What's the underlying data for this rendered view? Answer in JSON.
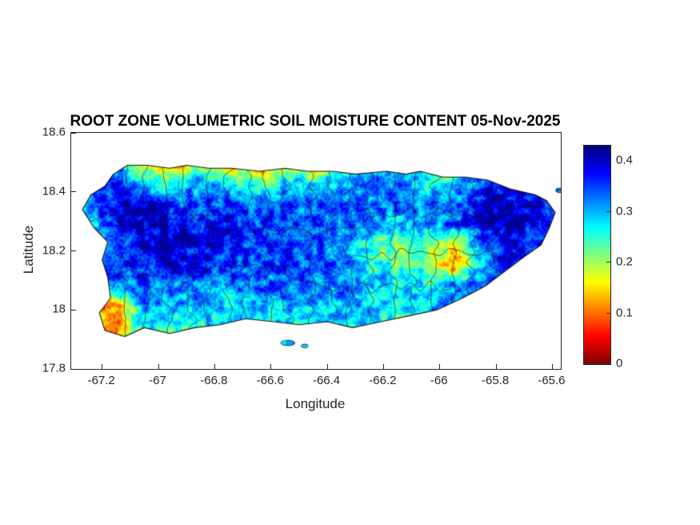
{
  "figure": {
    "background": "#ffffff",
    "axis_color": "#262626",
    "title_color": "#000000"
  },
  "chart_data": {
    "type": "heatmap",
    "title": "ROOT ZONE VOLUMETRIC SOIL MOISTURE CONTENT 05-Nov-2025",
    "xlabel": "Longitude",
    "ylabel": "Latitude",
    "region": "Puerto Rico",
    "xlim": [
      -67.31,
      -65.57
    ],
    "ylim": [
      17.8,
      18.6
    ],
    "grid_lines_visible": false,
    "xticks": {
      "values": [
        -67.2,
        -67,
        -66.8,
        -66.6,
        -66.4,
        -66.2,
        -66,
        -65.8,
        -65.6
      ],
      "labels": [
        "-67.2",
        "-67",
        "-66.8",
        "-66.6",
        "-66.4",
        "-66.2",
        "-66",
        "-65.8",
        "-65.6"
      ]
    },
    "yticks": {
      "values": [
        18.6,
        18.4,
        18.2,
        18,
        17.8
      ],
      "labels": [
        "18.6",
        "18.4",
        "18.2",
        "18",
        "17.8"
      ]
    },
    "colorbar": {
      "position": "right",
      "clim": [
        0,
        0.43
      ],
      "ticks": {
        "values": [
          0.4,
          0.3,
          0.2,
          0.1,
          0
        ],
        "labels": [
          "0.4",
          "0.3",
          "0.2",
          "0.1",
          "0"
        ]
      },
      "colormap": "jet-reversed (high values = dark blue, low values = dark red)",
      "colormap_stops_low_to_high": [
        "#8f0000",
        "#ff0000",
        "#ffff00",
        "#00ffff",
        "#0000ff",
        "#00008f"
      ]
    },
    "grid": {
      "orientation": "rows north-to-south, cols west-to-east; volumetric soil moisture m3/m3",
      "lat0": 18.5,
      "dlat": 0.07,
      "lon0": -67.25,
      "dlon": 0.1,
      "values": [
        [
          0.31,
          0.3,
          0.12,
          0.1,
          0.18,
          0.13,
          0.08,
          0.16,
          0.12,
          0.18,
          0.28,
          0.28,
          0.31,
          0.14,
          0.3,
          0.33,
          0.31,
          0.3
        ],
        [
          0.34,
          0.37,
          0.28,
          0.26,
          0.31,
          0.27,
          0.24,
          0.29,
          0.27,
          0.29,
          0.33,
          0.33,
          0.27,
          0.28,
          0.35,
          0.39,
          0.36,
          0.33
        ],
        [
          0.31,
          0.38,
          0.4,
          0.36,
          0.34,
          0.36,
          0.33,
          0.35,
          0.33,
          0.35,
          0.33,
          0.34,
          0.32,
          0.31,
          0.38,
          0.41,
          0.38,
          0.34
        ],
        [
          0.29,
          0.36,
          0.41,
          0.39,
          0.37,
          0.38,
          0.35,
          0.36,
          0.34,
          0.33,
          0.31,
          0.29,
          0.3,
          0.34,
          0.4,
          0.41,
          0.37,
          0.33
        ],
        [
          0.31,
          0.34,
          0.39,
          0.4,
          0.38,
          0.37,
          0.35,
          0.34,
          0.35,
          0.31,
          0.25,
          0.21,
          0.22,
          0.15,
          0.33,
          0.39,
          0.34,
          0.31
        ],
        [
          0.33,
          0.36,
          0.37,
          0.39,
          0.37,
          0.36,
          0.34,
          0.35,
          0.34,
          0.32,
          0.27,
          0.23,
          0.24,
          0.12,
          0.3,
          0.36,
          0.31,
          0.29
        ],
        [
          0.3,
          0.32,
          0.34,
          0.32,
          0.33,
          0.31,
          0.33,
          0.34,
          0.31,
          0.33,
          0.31,
          0.28,
          0.27,
          0.32,
          0.34,
          0.32,
          0.29,
          0.27
        ],
        [
          0.16,
          0.1,
          0.31,
          0.28,
          0.3,
          0.28,
          0.3,
          0.31,
          0.29,
          0.31,
          0.29,
          0.27,
          0.29,
          0.32,
          0.3,
          0.28,
          0.27,
          0.25
        ],
        [
          0.2,
          0.12,
          0.27,
          0.24,
          0.27,
          0.25,
          0.27,
          0.29,
          0.27,
          0.29,
          0.27,
          0.25,
          0.27,
          0.29,
          0.27,
          0.25,
          0.24,
          0.23
        ]
      ]
    },
    "coastline": [
      [
        -67.16,
        18.46
      ],
      [
        -67.11,
        18.49
      ],
      [
        -67.04,
        18.49
      ],
      [
        -66.96,
        18.48
      ],
      [
        -66.9,
        18.49
      ],
      [
        -66.82,
        18.48
      ],
      [
        -66.74,
        18.48
      ],
      [
        -66.64,
        18.47
      ],
      [
        -66.55,
        18.48
      ],
      [
        -66.47,
        18.47
      ],
      [
        -66.38,
        18.47
      ],
      [
        -66.3,
        18.46
      ],
      [
        -66.19,
        18.47
      ],
      [
        -66.12,
        18.46
      ],
      [
        -66.07,
        18.47
      ],
      [
        -65.99,
        18.45
      ],
      [
        -65.91,
        18.45
      ],
      [
        -65.83,
        18.44
      ],
      [
        -65.75,
        18.41
      ],
      [
        -65.66,
        18.39
      ],
      [
        -65.62,
        18.37
      ],
      [
        -65.59,
        18.33
      ],
      [
        -65.61,
        18.28
      ],
      [
        -65.64,
        18.22
      ],
      [
        -65.7,
        18.18
      ],
      [
        -65.77,
        18.13
      ],
      [
        -65.84,
        18.08
      ],
      [
        -65.92,
        18.04
      ],
      [
        -66.01,
        18.0
      ],
      [
        -66.11,
        17.98
      ],
      [
        -66.21,
        17.96
      ],
      [
        -66.31,
        17.94
      ],
      [
        -66.4,
        17.96
      ],
      [
        -66.5,
        17.95
      ],
      [
        -66.59,
        17.96
      ],
      [
        -66.69,
        17.97
      ],
      [
        -66.78,
        17.95
      ],
      [
        -66.87,
        17.94
      ],
      [
        -66.96,
        17.92
      ],
      [
        -67.05,
        17.94
      ],
      [
        -67.12,
        17.91
      ],
      [
        -67.19,
        17.93
      ],
      [
        -67.21,
        17.99
      ],
      [
        -67.17,
        18.04
      ],
      [
        -67.18,
        18.11
      ],
      [
        -67.2,
        18.17
      ],
      [
        -67.18,
        18.23
      ],
      [
        -67.23,
        18.28
      ],
      [
        -67.27,
        18.34
      ],
      [
        -67.24,
        18.39
      ],
      [
        -67.19,
        18.42
      ]
    ],
    "islets": [
      {
        "center": [
          -66.54,
          17.888
        ],
        "rx": 0.025,
        "ry": 0.009,
        "value": 0.2
      },
      {
        "center": [
          -66.48,
          17.878
        ],
        "rx": 0.012,
        "ry": 0.006,
        "value": 0.24
      },
      {
        "center": [
          -65.575,
          18.405
        ],
        "rx": 0.013,
        "ry": 0.007,
        "value": 0.28
      }
    ],
    "boundaries": {
      "label": "municipio boundaries",
      "verticals": [
        -67.13,
        -67.05,
        -66.97,
        -66.89,
        -66.82,
        -66.75,
        -66.68,
        -66.61,
        -66.54,
        -66.46,
        -66.39,
        -66.32,
        -66.25,
        -66.17,
        -66.09,
        -66.02,
        -65.95,
        -65.88,
        -65.8,
        -65.72
      ],
      "horizontals": [
        {
          "lat": 18.31,
          "lon0": -67.26,
          "lon1": -66.72
        },
        {
          "lat": 18.27,
          "lon0": -66.72,
          "lon1": -66.28
        },
        {
          "lat": 18.33,
          "lon0": -66.28,
          "lon1": -65.82
        },
        {
          "lat": 18.13,
          "lon0": -67.22,
          "lon1": -66.52
        },
        {
          "lat": 18.08,
          "lon0": -66.52,
          "lon1": -65.95
        },
        {
          "lat": 18.19,
          "lon0": -66.3,
          "lon1": -65.68
        }
      ]
    }
  }
}
